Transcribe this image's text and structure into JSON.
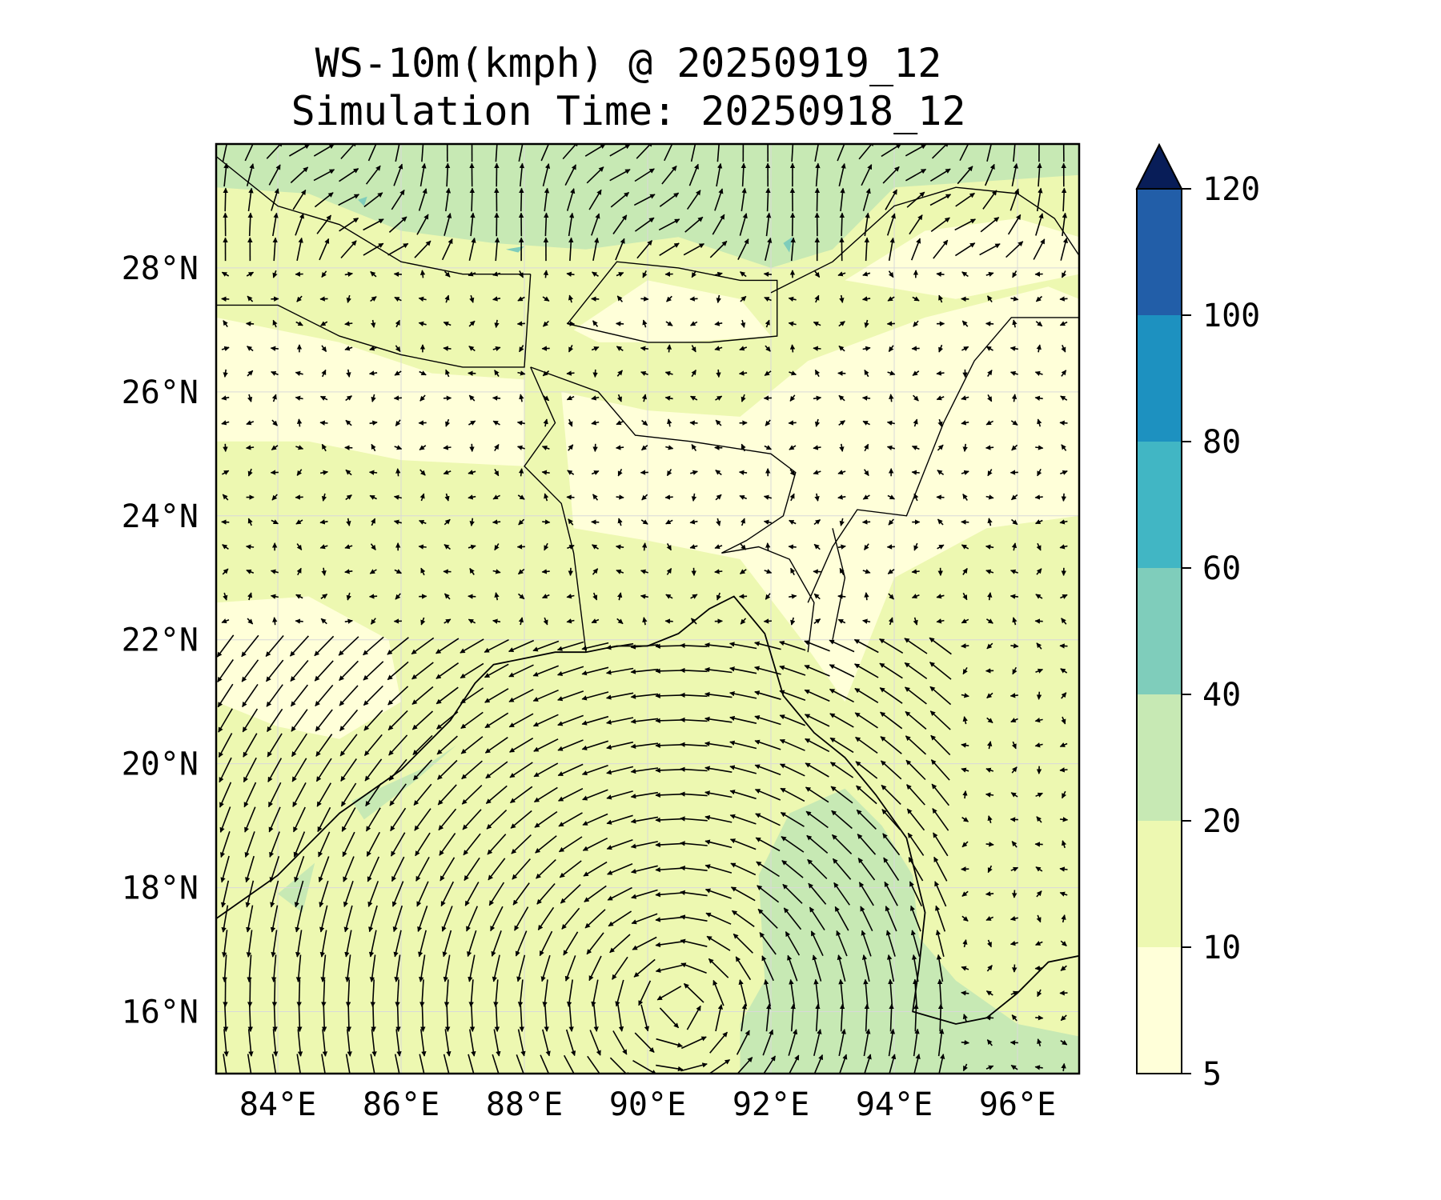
{
  "title": {
    "line1": "WS-10m(kmph) @ 20250919_12",
    "line2": "Simulation Time: 20250918_12"
  },
  "map": {
    "lon_range": [
      83.0,
      97.0
    ],
    "lat_range": [
      15.0,
      30.0
    ],
    "lon_ticks": [
      {
        "value": 84,
        "label": "84°E"
      },
      {
        "value": 86,
        "label": "86°E"
      },
      {
        "value": 88,
        "label": "88°E"
      },
      {
        "value": 90,
        "label": "90°E"
      },
      {
        "value": 92,
        "label": "92°E"
      },
      {
        "value": 94,
        "label": "94°E"
      },
      {
        "value": 96,
        "label": "96°E"
      }
    ],
    "lat_ticks": [
      {
        "value": 16,
        "label": "16°N"
      },
      {
        "value": 18,
        "label": "18°N"
      },
      {
        "value": 20,
        "label": "20°N"
      },
      {
        "value": 22,
        "label": "22°N"
      },
      {
        "value": 24,
        "label": "24°N"
      },
      {
        "value": 26,
        "label": "26°N"
      },
      {
        "value": 28,
        "label": "28°N"
      }
    ],
    "gridlines": true,
    "coastline": [
      [
        83.0,
        17.5
      ],
      [
        84.0,
        18.2
      ],
      [
        85.0,
        19.2
      ],
      [
        86.0,
        19.9
      ],
      [
        86.8,
        20.7
      ],
      [
        87.2,
        21.3
      ],
      [
        87.5,
        21.6
      ],
      [
        88.0,
        21.7
      ],
      [
        88.5,
        21.8
      ],
      [
        89.0,
        21.8
      ],
      [
        89.5,
        21.9
      ],
      [
        90.0,
        21.9
      ],
      [
        90.5,
        22.1
      ],
      [
        91.0,
        22.5
      ],
      [
        91.4,
        22.7
      ],
      [
        91.9,
        22.1
      ],
      [
        92.2,
        21.1
      ],
      [
        92.7,
        20.5
      ],
      [
        93.2,
        20.1
      ],
      [
        93.7,
        19.5
      ],
      [
        94.2,
        18.8
      ],
      [
        94.5,
        17.6
      ],
      [
        94.4,
        16.7
      ],
      [
        94.3,
        16.0
      ],
      [
        95.0,
        15.8
      ],
      [
        95.5,
        15.9
      ],
      [
        96.0,
        16.3
      ],
      [
        96.5,
        16.8
      ],
      [
        97.0,
        16.9
      ]
    ],
    "borders": [
      [
        [
          83.0,
          29.8
        ],
        [
          84.0,
          29.0
        ],
        [
          85.0,
          28.7
        ],
        [
          86.0,
          28.1
        ],
        [
          87.0,
          27.9
        ],
        [
          88.1,
          27.9
        ]
      ],
      [
        [
          83.0,
          27.4
        ],
        [
          84.0,
          27.4
        ],
        [
          85.0,
          26.9
        ],
        [
          86.0,
          26.6
        ],
        [
          87.0,
          26.4
        ],
        [
          88.0,
          26.4
        ],
        [
          88.1,
          27.9
        ]
      ],
      [
        [
          88.7,
          27.1
        ],
        [
          89.5,
          28.1
        ],
        [
          90.5,
          28.0
        ],
        [
          91.5,
          27.8
        ],
        [
          92.1,
          27.8
        ],
        [
          92.1,
          26.9
        ],
        [
          91.0,
          26.8
        ],
        [
          90.0,
          26.8
        ],
        [
          88.7,
          27.1
        ]
      ],
      [
        [
          92.0,
          27.6
        ],
        [
          93.0,
          28.1
        ],
        [
          94.0,
          29.0
        ],
        [
          95.0,
          29.3
        ],
        [
          96.0,
          29.2
        ],
        [
          96.6,
          28.8
        ],
        [
          97.0,
          28.2
        ]
      ],
      [
        [
          88.1,
          26.4
        ],
        [
          89.2,
          26.0
        ],
        [
          89.8,
          25.3
        ],
        [
          90.7,
          25.2
        ],
        [
          92.0,
          25.0
        ],
        [
          92.4,
          24.7
        ],
        [
          92.2,
          24.0
        ],
        [
          91.6,
          23.6
        ],
        [
          91.2,
          23.4
        ],
        [
          91.8,
          23.5
        ],
        [
          92.3,
          23.3
        ],
        [
          92.7,
          22.6
        ],
        [
          92.6,
          21.8
        ]
      ],
      [
        [
          88.1,
          26.4
        ],
        [
          88.5,
          25.5
        ],
        [
          88.0,
          24.8
        ],
        [
          88.6,
          24.2
        ],
        [
          88.8,
          23.4
        ],
        [
          88.9,
          22.6
        ],
        [
          89.0,
          21.8
        ]
      ],
      [
        [
          92.6,
          22.6
        ],
        [
          93.0,
          23.5
        ],
        [
          93.4,
          24.1
        ],
        [
          94.2,
          24.0
        ],
        [
          94.8,
          25.5
        ],
        [
          95.3,
          26.5
        ],
        [
          95.9,
          27.2
        ],
        [
          97.0,
          27.2
        ]
      ],
      [
        [
          93.0,
          22.0
        ],
        [
          93.2,
          23.0
        ],
        [
          93.0,
          23.8
        ]
      ]
    ],
    "quiver_grid": {
      "lon_start": 83.15,
      "lon_step": 0.4,
      "lat_start": 15.1,
      "lat_step": 0.4
    },
    "shaded_regions": [
      {
        "level_index": 2,
        "points": [
          [
            83.0,
            30.0
          ],
          [
            97.0,
            30.0
          ],
          [
            97.0,
            29.5
          ],
          [
            95.5,
            29.4
          ],
          [
            94.0,
            29.3
          ],
          [
            93.0,
            28.3
          ],
          [
            92.0,
            28.0
          ],
          [
            90.5,
            28.5
          ],
          [
            89.0,
            28.3
          ],
          [
            87.5,
            28.4
          ],
          [
            86.0,
            28.6
          ],
          [
            84.5,
            29.2
          ],
          [
            83.0,
            29.3
          ]
        ]
      },
      {
        "level_index": 2,
        "points": [
          [
            91.5,
            15.0
          ],
          [
            97.0,
            15.0
          ],
          [
            97.0,
            15.6
          ],
          [
            96.0,
            15.8
          ],
          [
            95.0,
            16.5
          ],
          [
            94.4,
            17.2
          ],
          [
            94.3,
            18.2
          ],
          [
            93.8,
            19.0
          ],
          [
            93.2,
            19.6
          ],
          [
            92.3,
            19.2
          ],
          [
            91.8,
            18.2
          ],
          [
            91.9,
            16.5
          ],
          [
            91.5,
            15.8
          ]
        ]
      },
      {
        "level_index": 2,
        "points": [
          [
            85.2,
            19.4
          ],
          [
            86.3,
            19.9
          ],
          [
            86.9,
            20.3
          ],
          [
            86.2,
            19.7
          ],
          [
            85.4,
            19.1
          ]
        ]
      },
      {
        "level_index": 2,
        "points": [
          [
            84.0,
            17.9
          ],
          [
            84.6,
            18.4
          ],
          [
            84.4,
            17.6
          ]
        ]
      },
      {
        "level_index": 3,
        "points": [
          [
            85.3,
            29.1
          ],
          [
            85.45,
            29.15
          ],
          [
            85.4,
            29.0
          ]
        ]
      },
      {
        "level_index": 3,
        "points": [
          [
            87.7,
            28.3
          ],
          [
            88.0,
            28.35
          ],
          [
            87.9,
            28.25
          ]
        ]
      },
      {
        "level_index": 3,
        "points": [
          [
            92.2,
            28.4
          ],
          [
            92.35,
            28.5
          ],
          [
            92.3,
            28.25
          ]
        ]
      }
    ],
    "white_regions": [
      [
        [
          83.0,
          27.2
        ],
        [
          85.0,
          26.8
        ],
        [
          86.5,
          26.3
        ],
        [
          88.0,
          26.2
        ],
        [
          88.0,
          24.8
        ],
        [
          86.0,
          24.9
        ],
        [
          84.5,
          25.2
        ],
        [
          83.0,
          25.2
        ]
      ],
      [
        [
          88.8,
          27.0
        ],
        [
          90.0,
          27.8
        ],
        [
          91.5,
          27.5
        ],
        [
          92.0,
          26.9
        ],
        [
          90.5,
          26.8
        ],
        [
          89.2,
          26.8
        ]
      ],
      [
        [
          88.6,
          26.0
        ],
        [
          90.0,
          25.7
        ],
        [
          91.5,
          25.6
        ],
        [
          92.6,
          26.5
        ],
        [
          94.5,
          27.2
        ],
        [
          96.5,
          27.7
        ],
        [
          97.0,
          27.5
        ],
        [
          97.0,
          24.0
        ],
        [
          95.5,
          23.8
        ],
        [
          94.0,
          23.0
        ],
        [
          93.2,
          21.0
        ],
        [
          92.5,
          22.0
        ],
        [
          91.5,
          23.3
        ],
        [
          90.0,
          23.6
        ],
        [
          88.8,
          23.8
        ]
      ],
      [
        [
          93.2,
          27.8
        ],
        [
          94.5,
          28.6
        ],
        [
          96.0,
          28.8
        ],
        [
          97.0,
          28.5
        ],
        [
          97.0,
          27.9
        ],
        [
          95.0,
          27.5
        ]
      ],
      [
        [
          83.0,
          22.6
        ],
        [
          84.5,
          22.7
        ],
        [
          85.8,
          22.0
        ],
        [
          86.0,
          21.0
        ],
        [
          85.0,
          20.4
        ],
        [
          84.0,
          20.6
        ],
        [
          83.0,
          21.0
        ]
      ]
    ]
  },
  "colorbar": {
    "levels": [
      5,
      10,
      20,
      40,
      60,
      80,
      100,
      120
    ],
    "tick_labels": [
      "5",
      "10",
      "20",
      "40",
      "60",
      "80",
      "100",
      "120"
    ],
    "colors": [
      "#ffffd9",
      "#edf8b1",
      "#c7e9b4",
      "#7fcdbb",
      "#41b6c4",
      "#1d91c0",
      "#225ea8",
      "#253494"
    ],
    "over_color": "#081d58",
    "extend": "max"
  },
  "vector_field": {
    "vortex_center": [
      90.5,
      15.6
    ],
    "note_units": "kmph"
  }
}
